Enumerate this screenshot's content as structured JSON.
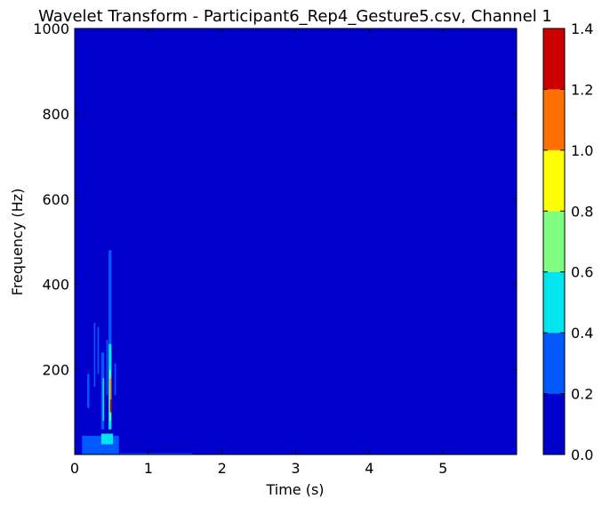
{
  "chart_data": {
    "type": "heatmap",
    "title": "Wavelet Transform - Participant6_Rep4_Gesture5.csv, Channel 1",
    "xlabel": "Time (s)",
    "ylabel": "Frequency (Hz)",
    "xlim": [
      0,
      6
    ],
    "ylim": [
      1,
      1000
    ],
    "x_ticks": [
      "0",
      "1",
      "2",
      "3",
      "4",
      "5"
    ],
    "x_tick_values": [
      0,
      1,
      2,
      3,
      4,
      5
    ],
    "y_ticks": [
      "200",
      "400",
      "600",
      "800",
      "1000"
    ],
    "y_tick_values": [
      200,
      400,
      600,
      800,
      1000
    ],
    "background_value": 0.0,
    "colorbar": {
      "levels": [
        0.0,
        0.2,
        0.4,
        0.6,
        0.8,
        1.0,
        1.2,
        1.4
      ],
      "tick_labels": [
        "0.0",
        "0.2",
        "0.4",
        "0.6",
        "0.8",
        "1.0",
        "1.2",
        "1.4"
      ],
      "colors": [
        "#0000cd",
        "#0058ff",
        "#00e5ee",
        "#7fff7f",
        "#ffff00",
        "#ff7000",
        "#cd0000"
      ]
    },
    "features": [
      {
        "t0": 0.17,
        "t1": 0.2,
        "f0": 110,
        "f1": 190,
        "value": 0.25
      },
      {
        "t0": 0.26,
        "t1": 0.28,
        "f0": 160,
        "f1": 310,
        "value": 0.25
      },
      {
        "t0": 0.31,
        "t1": 0.33,
        "f0": 190,
        "f1": 300,
        "value": 0.25
      },
      {
        "t0": 0.36,
        "t1": 0.4,
        "f0": 60,
        "f1": 240,
        "value": 0.25
      },
      {
        "t0": 0.38,
        "t1": 0.4,
        "f0": 80,
        "f1": 180,
        "value": 0.45
      },
      {
        "t0": 0.43,
        "t1": 0.45,
        "f0": 140,
        "f1": 270,
        "value": 0.25
      },
      {
        "t0": 0.46,
        "t1": 0.5,
        "f0": 110,
        "f1": 480,
        "value": 0.25
      },
      {
        "t0": 0.46,
        "t1": 0.5,
        "f0": 60,
        "f1": 260,
        "value": 0.45
      },
      {
        "t0": 0.47,
        "t1": 0.49,
        "f0": 80,
        "f1": 200,
        "value": 0.65
      },
      {
        "t0": 0.48,
        "t1": 0.5,
        "f0": 130,
        "f1": 180,
        "value": 1.1
      },
      {
        "t0": 0.48,
        "t1": 0.5,
        "f0": 100,
        "f1": 130,
        "value": 1.3
      },
      {
        "t0": 0.54,
        "t1": 0.56,
        "f0": 140,
        "f1": 215,
        "value": 0.25
      },
      {
        "t0": 0.1,
        "t1": 0.6,
        "f0": 1,
        "f1": 45,
        "value": 0.25
      },
      {
        "t0": 0.36,
        "t1": 0.52,
        "f0": 25,
        "f1": 50,
        "value": 0.45
      },
      {
        "t0": 0.6,
        "t1": 1.6,
        "f0": 1,
        "f1": 4,
        "value": 0.25
      }
    ]
  }
}
